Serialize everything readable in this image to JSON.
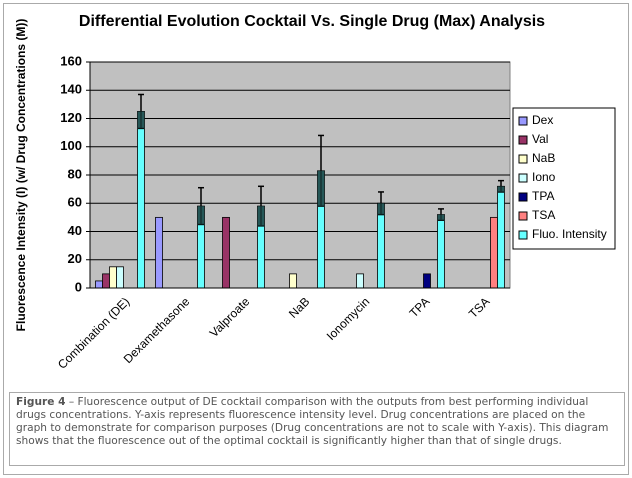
{
  "chart_data": {
    "type": "bar",
    "title": "Differential Evolution Cocktail Vs. Single Drug (Max) Analysis",
    "y_label": "Fluorescence Intensity (I) (w/ Drug Concentrations (M))",
    "categories": [
      "Combination (DE)",
      "Dexamethasone",
      "Valproate",
      "NaB",
      "Ionomycin",
      "TPA",
      "TSA"
    ],
    "series": [
      {
        "name": "Dex",
        "color": "#9999ff",
        "values": [
          5,
          50,
          null,
          null,
          null,
          null,
          null
        ]
      },
      {
        "name": "Val",
        "color": "#993366",
        "values": [
          10,
          null,
          50,
          null,
          null,
          null,
          null
        ]
      },
      {
        "name": "NaB",
        "color": "#ffffcc",
        "values": [
          15,
          null,
          null,
          10,
          null,
          null,
          null
        ]
      },
      {
        "name": "Iono",
        "color": "#ccffff",
        "values": [
          15,
          null,
          null,
          null,
          10,
          null,
          null
        ]
      },
      {
        "name": "TPA",
        "color": "#000080",
        "values": [
          null,
          null,
          null,
          null,
          null,
          10,
          null
        ]
      },
      {
        "name": "TSA",
        "color": "#ff8080",
        "values": [
          null,
          null,
          null,
          null,
          null,
          null,
          50
        ]
      },
      {
        "name": "Fluo. Intensity",
        "color": "#66ffff",
        "values": [
          125,
          58,
          58,
          83,
          60,
          52,
          72
        ],
        "errors": [
          12,
          13,
          14,
          25,
          8,
          4,
          4
        ]
      }
    ],
    "ylim": [
      0,
      160
    ],
    "yticks": [
      0,
      20,
      40,
      60,
      80,
      100,
      120,
      140,
      160
    ],
    "grid": true,
    "legend": "right",
    "plot_background": "#c0c0c0"
  },
  "caption": {
    "label": "Figure 4",
    "text": " – Fluorescence output of DE cocktail comparison with the outputs from best performing individual drugs concentrations. Y-axis represents fluorescence intensity level. Drug concentrations are placed on the graph to demonstrate for comparison purposes (Drug concentrations are not to scale with Y-axis). This diagram shows that the fluorescence out of the optimal cocktail is significantly higher than that of single drugs."
  }
}
